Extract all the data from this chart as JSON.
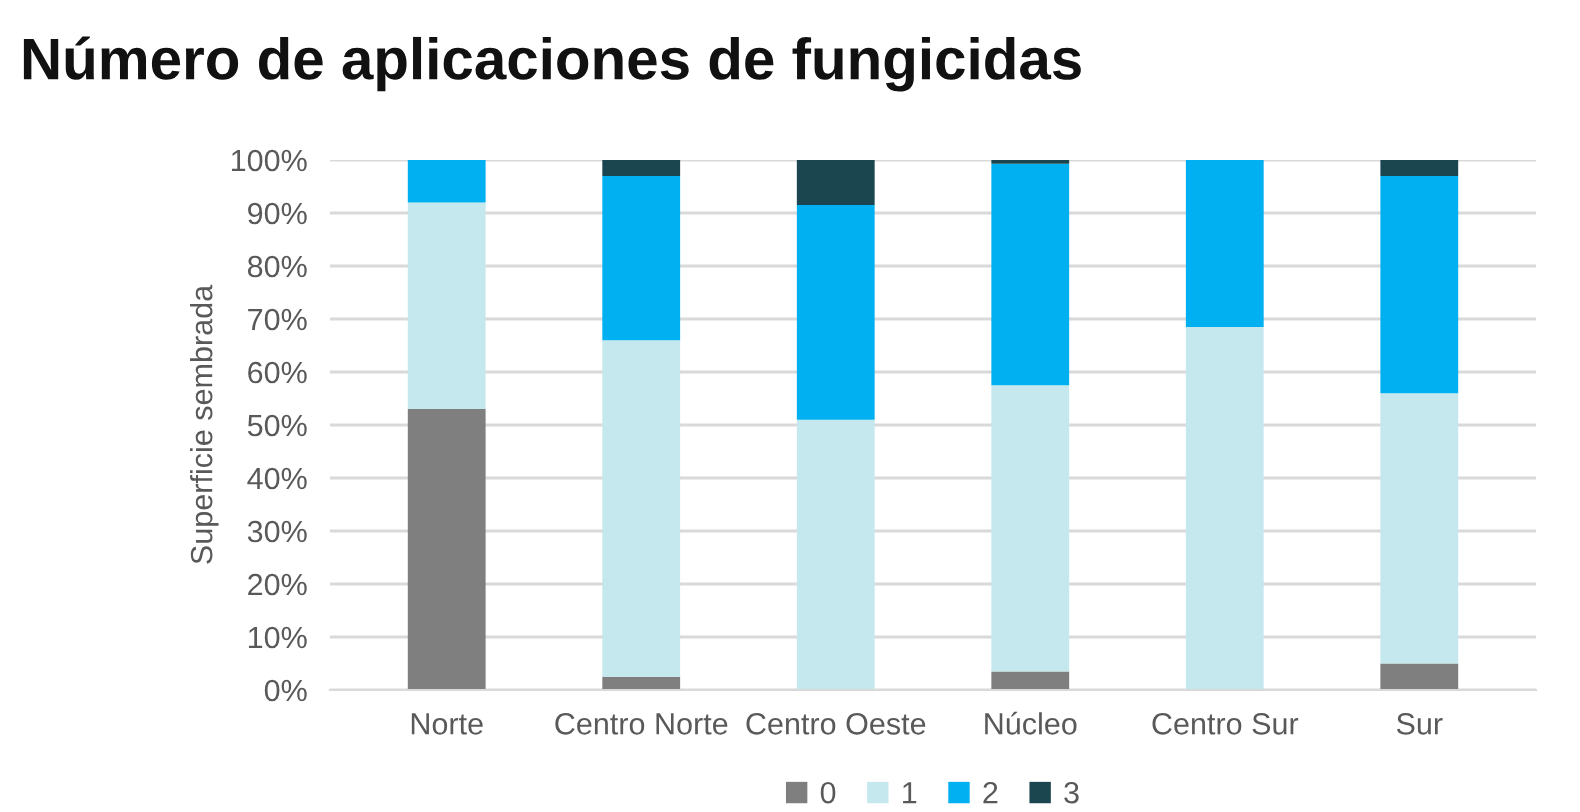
{
  "chart_data": {
    "type": "bar",
    "title": "Número de aplicaciones de fungicidas",
    "ylabel": "Superficie sembrada",
    "categories": [
      "Norte",
      "Centro Norte",
      "Centro Oeste",
      "Núcleo",
      "Centro Sur",
      "Sur"
    ],
    "stacked": true,
    "series": [
      {
        "name": "0",
        "color": "#7f7f7f",
        "values": [
          53,
          2.5,
          0,
          3.5,
          0,
          5
        ]
      },
      {
        "name": "1",
        "color": "#c5e8ee",
        "values": [
          39,
          63.5,
          51,
          54,
          68.5,
          51
        ]
      },
      {
        "name": "2",
        "color": "#00b0f0",
        "values": [
          8,
          31,
          40.5,
          41.8,
          31.5,
          41
        ]
      },
      {
        "name": "3",
        "color": "#1b4650",
        "values": [
          0,
          3,
          8.5,
          0.7,
          0,
          3
        ]
      }
    ],
    "ylim": [
      0,
      100
    ],
    "yticks": [
      {
        "value": 0,
        "label": "0%"
      },
      {
        "value": 10,
        "label": "10%"
      },
      {
        "value": 20,
        "label": "20%"
      },
      {
        "value": 30,
        "label": "30%"
      },
      {
        "value": 40,
        "label": "40%"
      },
      {
        "value": 50,
        "label": "50%"
      },
      {
        "value": 60,
        "label": "60%"
      },
      {
        "value": 70,
        "label": "70%"
      },
      {
        "value": 80,
        "label": "80%"
      },
      {
        "value": 90,
        "label": "90%"
      },
      {
        "value": 100,
        "label": "100%"
      }
    ],
    "grid": "y",
    "legend": "bottom"
  }
}
